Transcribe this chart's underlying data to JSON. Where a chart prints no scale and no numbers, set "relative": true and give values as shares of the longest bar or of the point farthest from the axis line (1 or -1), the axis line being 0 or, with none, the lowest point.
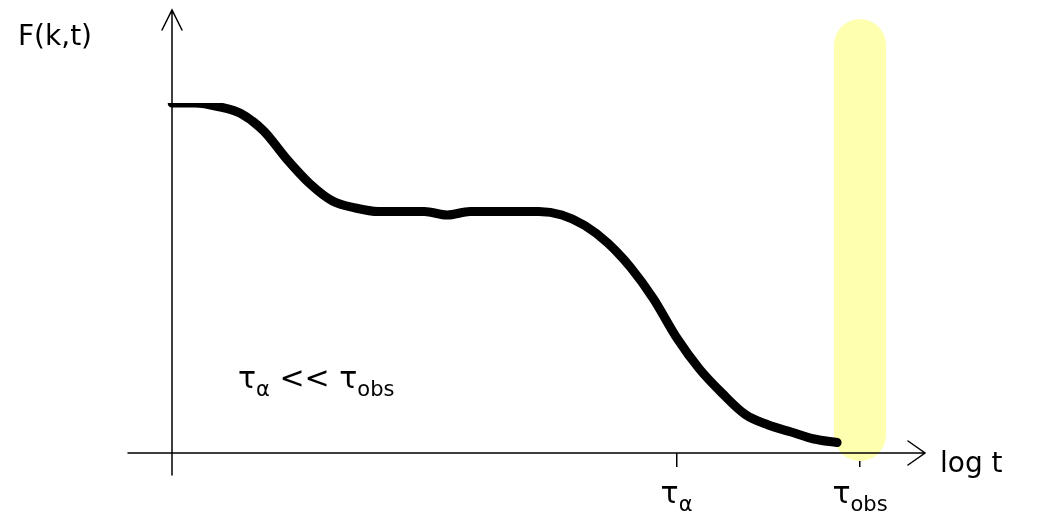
{
  "chart_data": {
    "type": "line",
    "relative": true,
    "ylabel": "F(k,t)",
    "xlabel": "log t",
    "categories": [
      null,
      null,
      null,
      null,
      null,
      null,
      null,
      null,
      null,
      null,
      null,
      null,
      null,
      null,
      null,
      null,
      null,
      null,
      null,
      null,
      null,
      null,
      "τ$_{α}$",
      null,
      null,
      null,
      null,
      null,
      null,
      null,
      "τ$_{obs}$"
    ],
    "series": [
      {
        "color": "#000000",
        "values": [
          1.0,
          1.0,
          0.99,
          0.97,
          0.92,
          0.84,
          0.77,
          0.72,
          0.7,
          0.69,
          0.69,
          0.69,
          0.68,
          0.69,
          0.69,
          0.69,
          0.69,
          0.68,
          0.65,
          0.6,
          0.53,
          0.44,
          0.33,
          0.24,
          0.17,
          0.11,
          0.08,
          0.06,
          0.04,
          0.03,
          null
        ]
      }
    ],
    "ref_lines": [
      {
        "axis": "x",
        "value": "τ$_{obs}$",
        "color": "#ffffb0"
      }
    ],
    "annotations": [
      "τ$_{α}$ << τ$_{obs}$"
    ],
    "grid": false,
    "legend": false,
    "marker": "none",
    "line_style": "solid"
  }
}
